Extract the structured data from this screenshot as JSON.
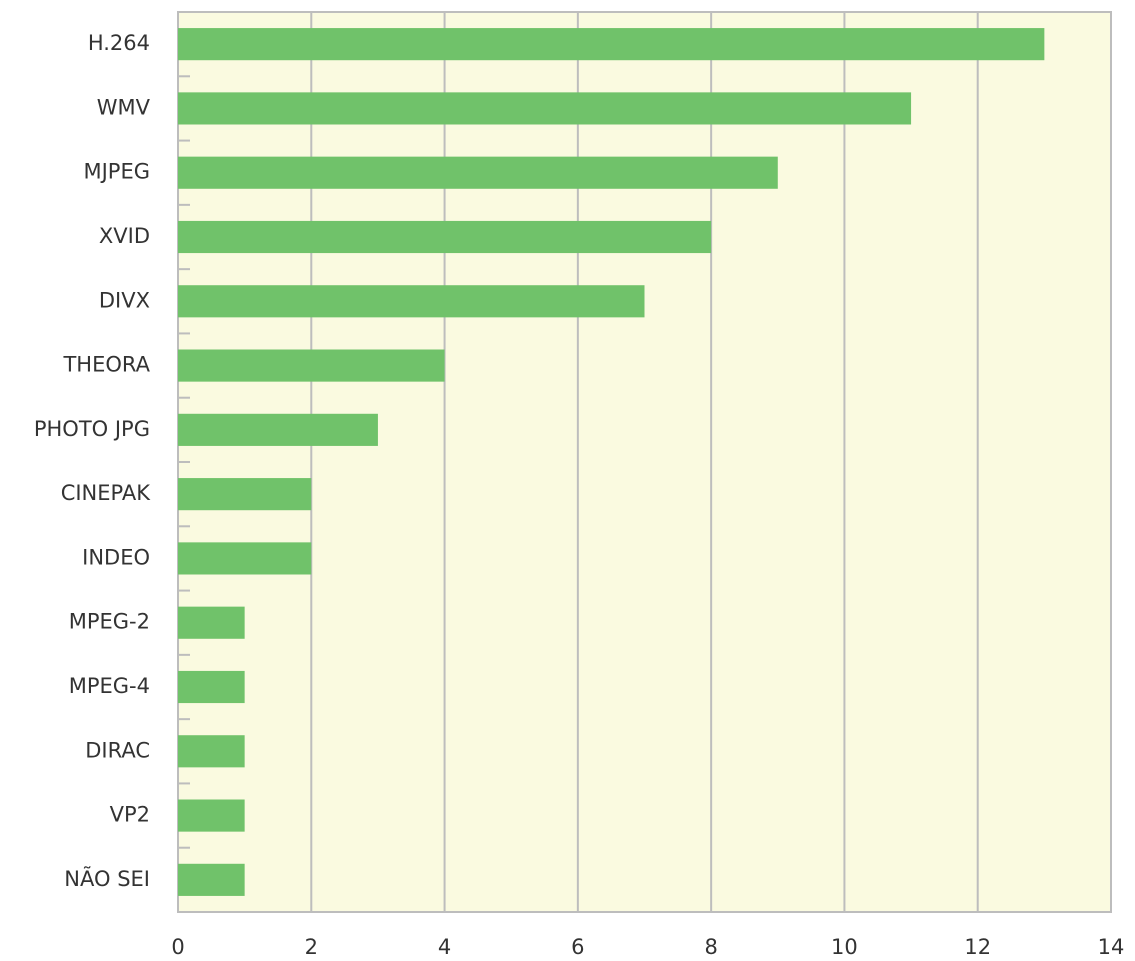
{
  "chart_data": {
    "type": "bar",
    "orientation": "horizontal",
    "categories": [
      "H.264",
      "WMV",
      "MJPEG",
      "XVID",
      "DIVX",
      "THEORA",
      "PHOTO JPG",
      "CINEPAK",
      "INDEO",
      "MPEG-2",
      "MPEG-4",
      "DIRAC",
      "VP2",
      "NÃO SEI"
    ],
    "values": [
      13,
      11,
      9,
      8,
      7,
      4,
      3,
      2,
      2,
      1,
      1,
      1,
      1,
      1
    ],
    "color": "#70c26a",
    "xlim": [
      0,
      14
    ],
    "xticks": [
      0,
      2,
      4,
      6,
      8,
      10,
      12,
      14
    ],
    "grid": true
  }
}
